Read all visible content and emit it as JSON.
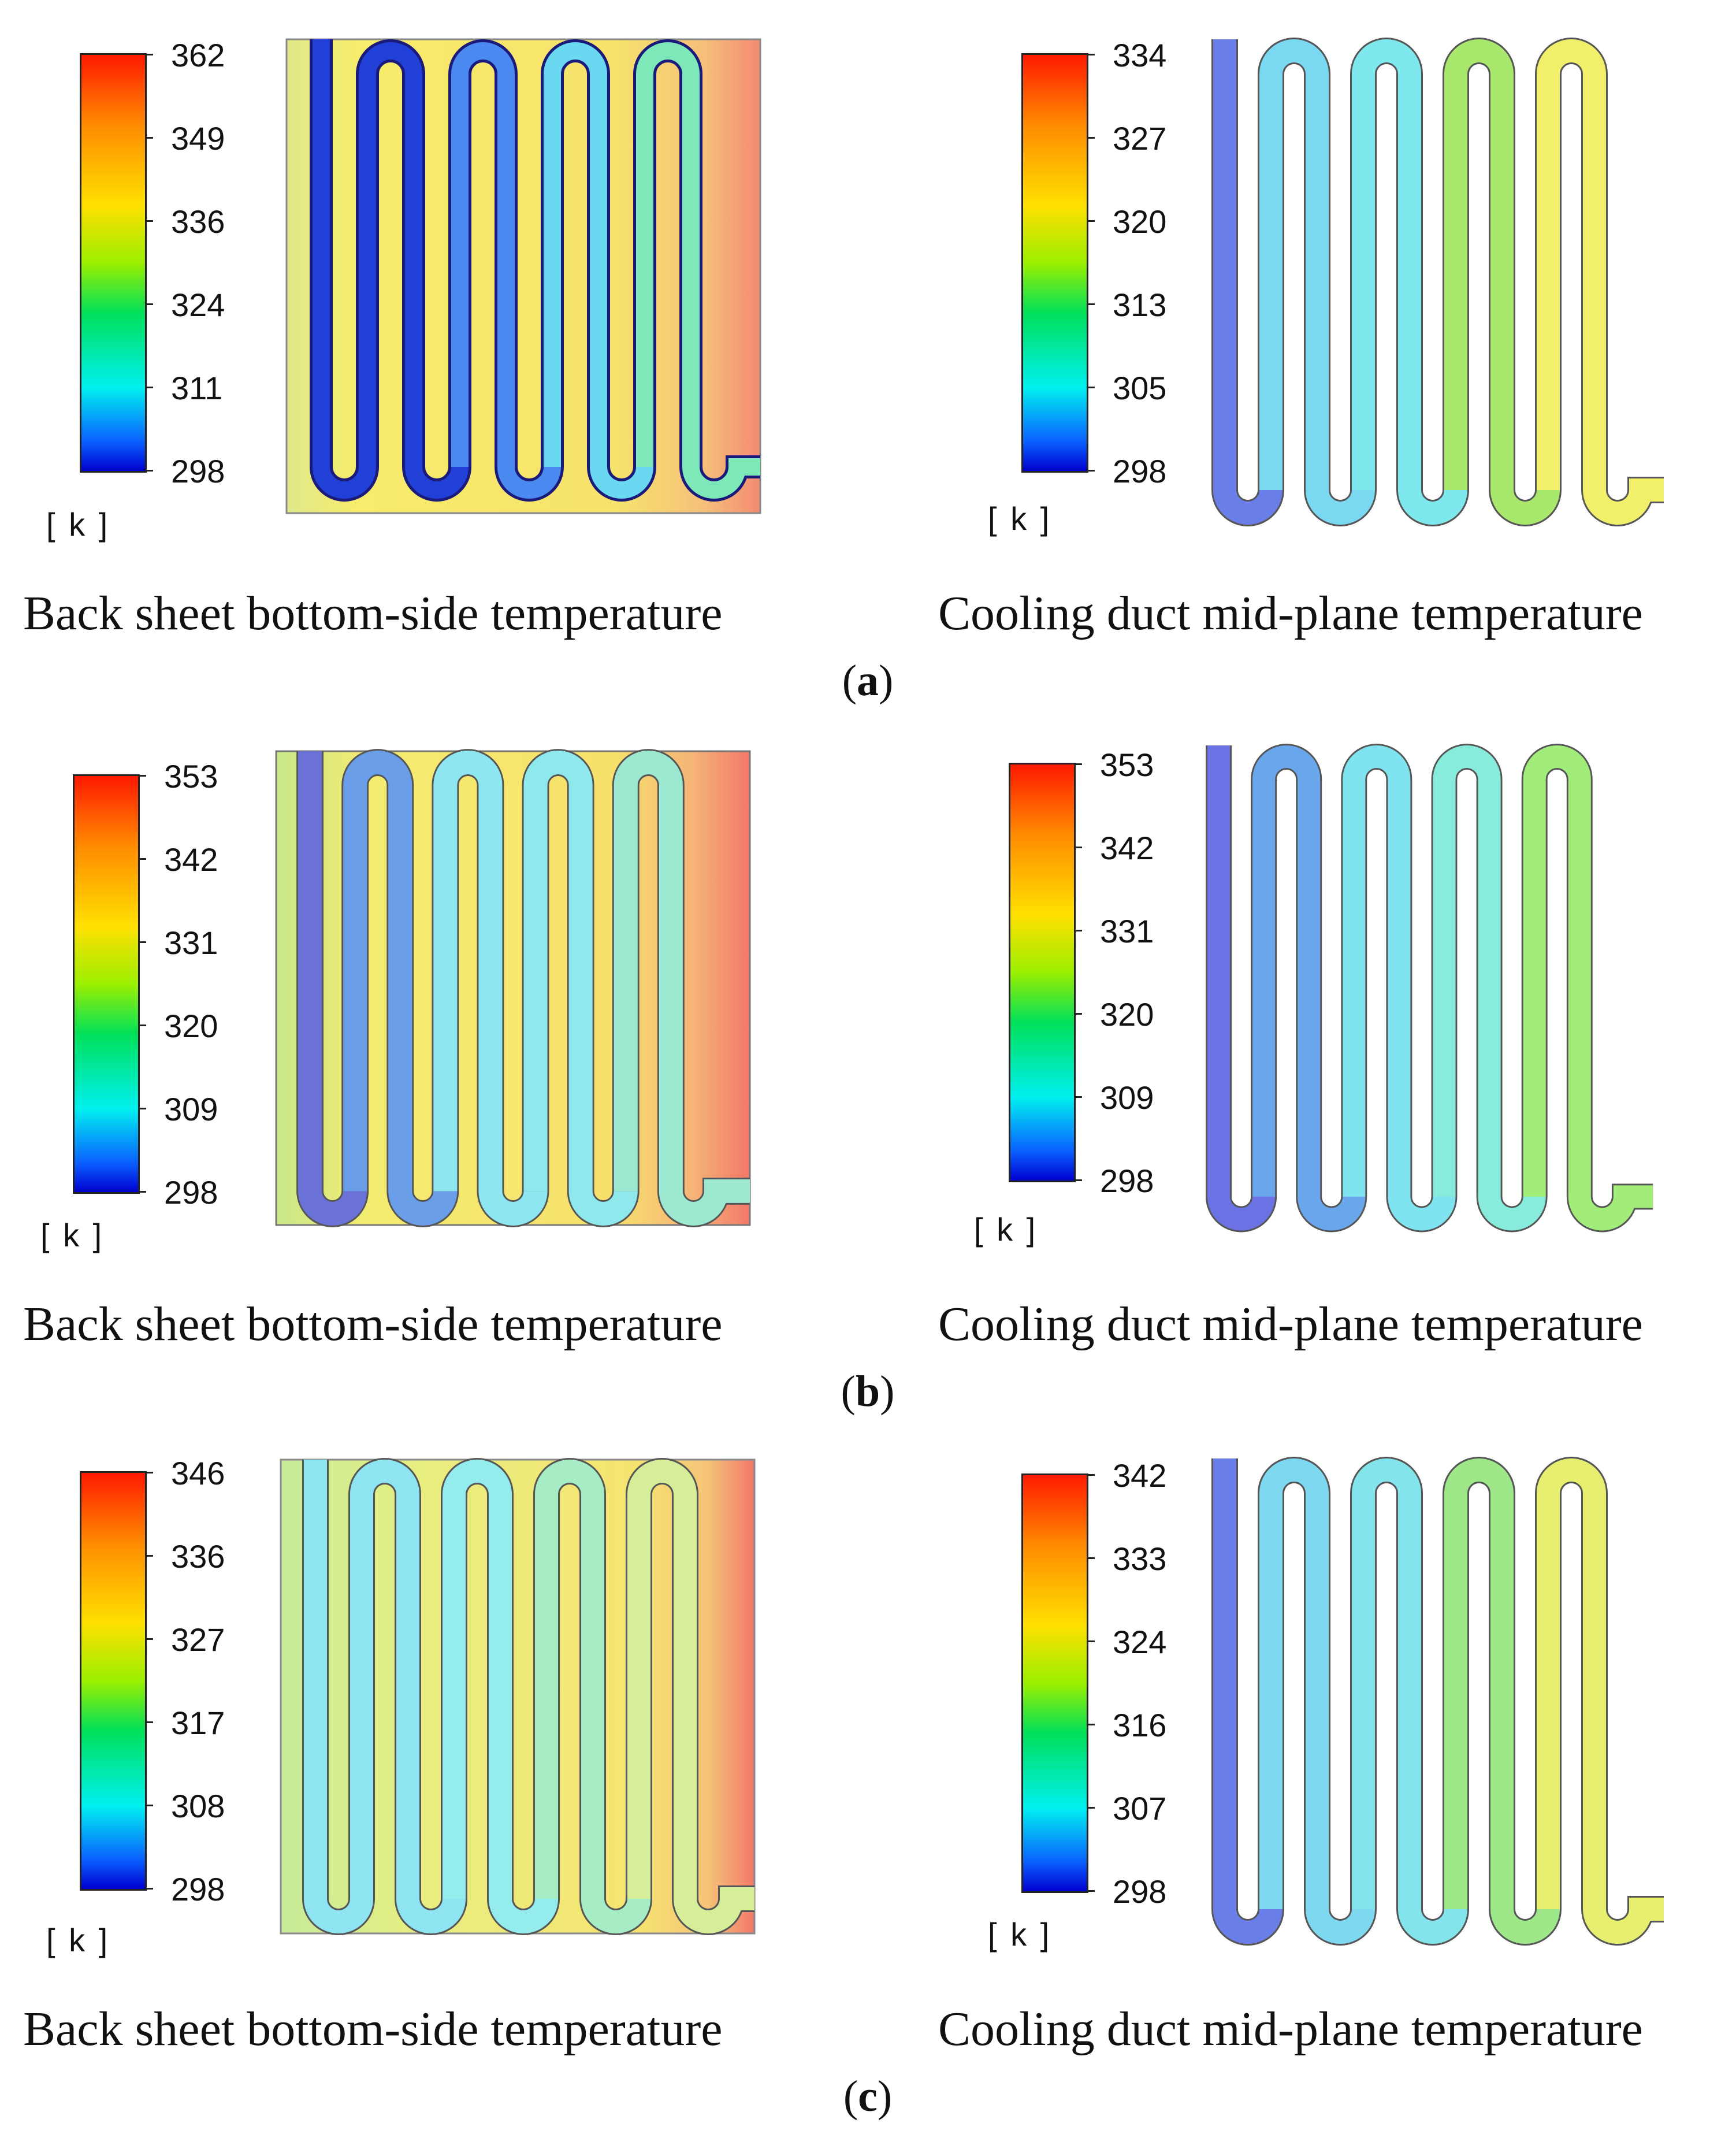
{
  "rows": [
    {
      "label": "a",
      "left": {
        "scale_ticks": [
          "362",
          "349",
          "336",
          "324",
          "311",
          "298"
        ],
        "unit": "[ k ]",
        "caption": "Back sheet bottom-side temperature"
      },
      "right": {
        "scale_ticks": [
          "334",
          "327",
          "320",
          "313",
          "305",
          "298"
        ],
        "unit": "[ k ]",
        "caption": "Cooling duct mid-plane temperature"
      }
    },
    {
      "label": "b",
      "left": {
        "scale_ticks": [
          "353",
          "342",
          "331",
          "320",
          "309",
          "298"
        ],
        "unit": "[ k ]",
        "caption": "Back sheet bottom-side temperature"
      },
      "right": {
        "scale_ticks": [
          "353",
          "342",
          "331",
          "320",
          "309",
          "298"
        ],
        "unit": "[ k ]",
        "caption": "Cooling duct mid-plane temperature"
      }
    },
    {
      "label": "c",
      "left": {
        "scale_ticks": [
          "346",
          "336",
          "327",
          "317",
          "308",
          "298"
        ],
        "unit": "[ k ]",
        "caption": "Back sheet bottom-side temperature"
      },
      "right": {
        "scale_ticks": [
          "342",
          "333",
          "324",
          "316",
          "307",
          "298"
        ],
        "unit": "[ k ]",
        "caption": "Cooling duct mid-plane temperature"
      }
    }
  ],
  "colors": {
    "yellow": "#f7ec6c",
    "pale_yellow": "#f2ea86",
    "green_edge": "#c9e88a",
    "orange_edge": "#f4a274",
    "dark_blue": "#1f3fd0",
    "blue": "#5a72e8",
    "cyan": "#6fe0f0",
    "light_cyan": "#8ef0f4",
    "green": "#9ee870",
    "yellow_green": "#d6ef60",
    "duct_yellow": "#f2f06a"
  }
}
